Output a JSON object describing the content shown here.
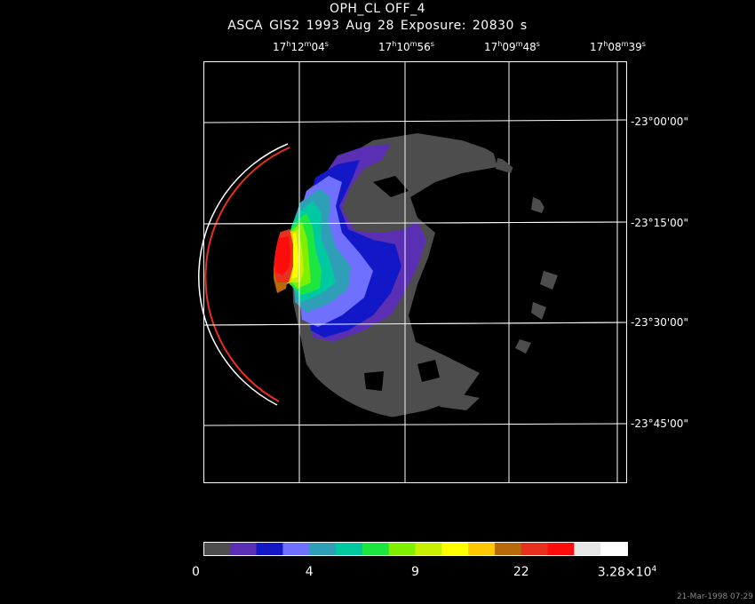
{
  "title": "OPH_CL OFF_4",
  "subtitle": "ASCA GIS2   1993 Aug 28    Exposure: 20830 s",
  "ra_axis": [
    {
      "h": "17",
      "m": "12",
      "s": "04"
    },
    {
      "h": "17",
      "m": "10",
      "s": "56"
    },
    {
      "h": "17",
      "m": "09",
      "s": "48"
    },
    {
      "h": "17",
      "m": "08",
      "s": "39"
    }
  ],
  "dec_axis": [
    "-23°00'00\"",
    "-23°15'00\"",
    "-23°30'00\"",
    "-23°45'00\""
  ],
  "colorbar": {
    "colors": [
      "#4d4d4d",
      "#5a2fb3",
      "#1218c8",
      "#7070ff",
      "#2f9fb8",
      "#00c8a0",
      "#1ee641",
      "#7ef000",
      "#c8ee00",
      "#ffff00",
      "#ffc800",
      "#b8690a",
      "#e8301e",
      "#ff0c0c",
      "#e6e6e6",
      "#ffffff"
    ],
    "labels": [
      {
        "text": "0",
        "frac": 0.0
      },
      {
        "text": "4",
        "frac": 0.25
      },
      {
        "text": "9",
        "frac": 0.5
      },
      {
        "text": "22",
        "frac": 0.75
      },
      {
        "text": "3.28×10",
        "exp": "4",
        "frac": 1.0
      }
    ]
  },
  "timestamp": "21-Mar-1998 07:29",
  "icons": {
    "image_panel": "xray-image-icon"
  }
}
